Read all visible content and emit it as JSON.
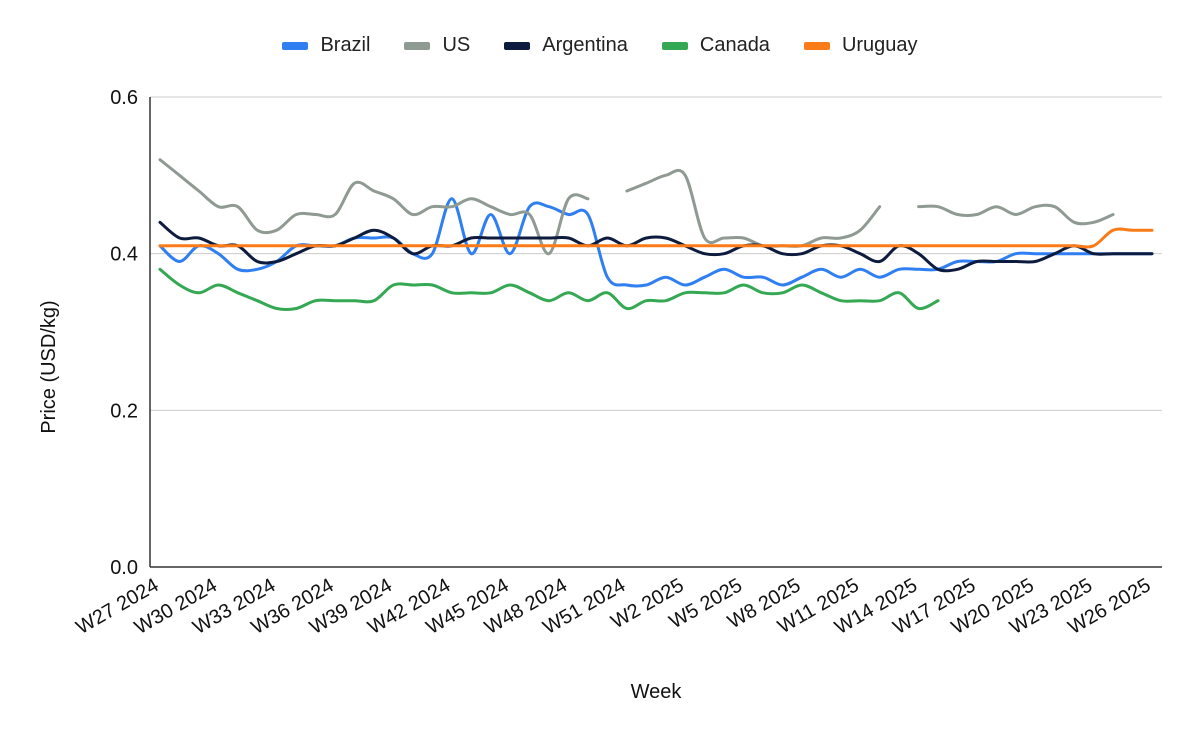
{
  "chart_data": {
    "type": "line",
    "title": "",
    "xlabel": "Week",
    "ylabel": "Price (USD/kg)",
    "ylim": [
      0,
      0.6
    ],
    "yticks": [
      "0.0",
      "0.2",
      "0.4",
      "0.6"
    ],
    "grid": "horizontal",
    "legend_position": "top",
    "x": [
      "W27 2024",
      "W28 2024",
      "W29 2024",
      "W30 2024",
      "W31 2024",
      "W32 2024",
      "W33 2024",
      "W34 2024",
      "W35 2024",
      "W36 2024",
      "W37 2024",
      "W38 2024",
      "W39 2024",
      "W40 2024",
      "W41 2024",
      "W42 2024",
      "W43 2024",
      "W44 2024",
      "W45 2024",
      "W46 2024",
      "W47 2024",
      "W48 2024",
      "W49 2024",
      "W50 2024",
      "W51 2024",
      "W52 2024",
      "W1 2025",
      "W2 2025",
      "W3 2025",
      "W4 2025",
      "W5 2025",
      "W6 2025",
      "W7 2025",
      "W8 2025",
      "W9 2025",
      "W10 2025",
      "W11 2025",
      "W12 2025",
      "W13 2025",
      "W14 2025",
      "W15 2025",
      "W16 2025",
      "W17 2025",
      "W18 2025",
      "W19 2025",
      "W20 2025",
      "W21 2025",
      "W22 2025",
      "W23 2025",
      "W24 2025",
      "W25 2025",
      "W26 2025"
    ],
    "x_tick_labels": [
      "W27 2024",
      "W30 2024",
      "W33 2024",
      "W36 2024",
      "W39 2024",
      "W42 2024",
      "W45 2024",
      "W48 2024",
      "W51 2024",
      "W2 2025",
      "W5 2025",
      "W8 2025",
      "W11 2025",
      "W14 2025",
      "W17 2025",
      "W20 2025",
      "W23 2025",
      "W26 2025"
    ],
    "series": [
      {
        "name": "Brazil",
        "color": "#2f7ff2",
        "values": [
          0.41,
          0.39,
          0.41,
          0.4,
          0.38,
          0.38,
          0.39,
          0.41,
          0.41,
          0.41,
          0.42,
          0.42,
          0.42,
          0.4,
          0.4,
          0.47,
          0.4,
          0.45,
          0.4,
          0.46,
          0.46,
          0.45,
          0.45,
          0.37,
          0.36,
          0.36,
          0.37,
          0.36,
          0.37,
          0.38,
          0.37,
          0.37,
          0.36,
          0.37,
          0.38,
          0.37,
          0.38,
          0.37,
          0.38,
          0.38,
          0.38,
          0.39,
          0.39,
          0.39,
          0.4,
          0.4,
          0.4,
          0.4,
          0.4,
          0.4,
          0.4,
          0.4
        ]
      },
      {
        "name": "US",
        "color": "#8f9a93",
        "values": [
          0.52,
          0.5,
          0.48,
          0.46,
          0.46,
          0.43,
          0.43,
          0.45,
          0.45,
          0.45,
          0.49,
          0.48,
          0.47,
          0.45,
          0.46,
          0.46,
          0.47,
          0.46,
          0.45,
          0.45,
          0.4,
          0.47,
          0.47,
          null,
          0.48,
          0.49,
          0.5,
          0.5,
          0.42,
          0.42,
          0.42,
          0.41,
          0.41,
          0.41,
          0.42,
          0.42,
          0.43,
          0.46,
          null,
          0.46,
          0.46,
          0.45,
          0.45,
          0.46,
          0.45,
          0.46,
          0.46,
          0.44,
          0.44,
          0.45,
          null,
          null
        ]
      },
      {
        "name": "Argentina",
        "color": "#0d1b3e",
        "values": [
          0.44,
          0.42,
          0.42,
          0.41,
          0.41,
          0.39,
          0.39,
          0.4,
          0.41,
          0.41,
          0.42,
          0.43,
          0.42,
          0.4,
          0.41,
          0.41,
          0.42,
          0.42,
          0.42,
          0.42,
          0.42,
          0.42,
          0.41,
          0.42,
          0.41,
          0.42,
          0.42,
          0.41,
          0.4,
          0.4,
          0.41,
          0.41,
          0.4,
          0.4,
          0.41,
          0.41,
          0.4,
          0.39,
          0.41,
          0.4,
          0.38,
          0.38,
          0.39,
          0.39,
          0.39,
          0.39,
          0.4,
          0.41,
          0.4,
          0.4,
          0.4,
          0.4
        ]
      },
      {
        "name": "Canada",
        "color": "#34a853",
        "values": [
          0.38,
          0.36,
          0.35,
          0.36,
          0.35,
          0.34,
          0.33,
          0.33,
          0.34,
          0.34,
          0.34,
          0.34,
          0.36,
          0.36,
          0.36,
          0.35,
          0.35,
          0.35,
          0.36,
          0.35,
          0.34,
          0.35,
          0.34,
          0.35,
          0.33,
          0.34,
          0.34,
          0.35,
          0.35,
          0.35,
          0.36,
          0.35,
          0.35,
          0.36,
          0.35,
          0.34,
          0.34,
          0.34,
          0.35,
          0.33,
          0.34,
          null,
          null,
          null,
          null,
          null,
          null,
          null,
          null,
          null,
          null,
          null
        ]
      },
      {
        "name": "Uruguay",
        "color": "#fa7b17",
        "values": [
          0.41,
          0.41,
          0.41,
          0.41,
          0.41,
          0.41,
          0.41,
          0.41,
          0.41,
          0.41,
          0.41,
          0.41,
          0.41,
          0.41,
          0.41,
          0.41,
          0.41,
          0.41,
          0.41,
          0.41,
          0.41,
          0.41,
          0.41,
          0.41,
          0.41,
          0.41,
          0.41,
          0.41,
          0.41,
          0.41,
          0.41,
          0.41,
          0.41,
          0.41,
          0.41,
          0.41,
          0.41,
          0.41,
          0.41,
          0.41,
          0.41,
          0.41,
          0.41,
          0.41,
          0.41,
          0.41,
          0.41,
          0.41,
          0.41,
          0.43,
          0.43,
          0.43
        ]
      }
    ]
  }
}
